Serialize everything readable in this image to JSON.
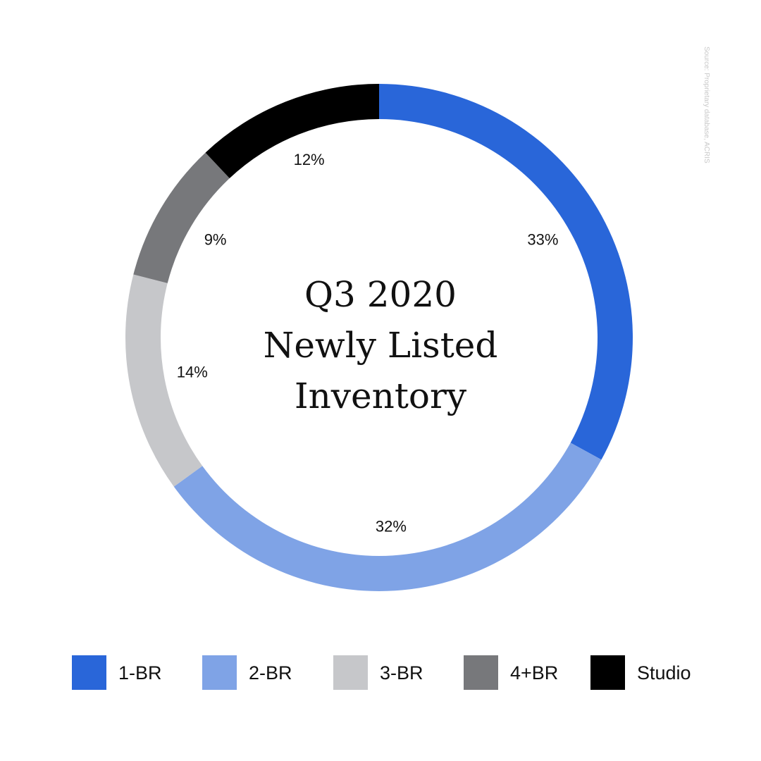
{
  "source_note": "Source: Proprietary database, ACRIS",
  "chart_data": {
    "type": "pie",
    "variant": "donut",
    "title_lines": [
      "Q3 2020",
      "Newly Listed",
      "Inventory"
    ],
    "categories": [
      "1-BR",
      "2-BR",
      "3-BR",
      "4+BR",
      "Studio"
    ],
    "values": [
      33,
      32,
      14,
      9,
      12
    ],
    "value_labels": [
      "33%",
      "32%",
      "14%",
      "9%",
      "12%"
    ],
    "colors": [
      "#2966d9",
      "#7fa3e6",
      "#c6c7ca",
      "#77787b",
      "#000000"
    ],
    "start_angle_deg": 0,
    "direction": "clockwise",
    "legend_placement": "bottom"
  }
}
